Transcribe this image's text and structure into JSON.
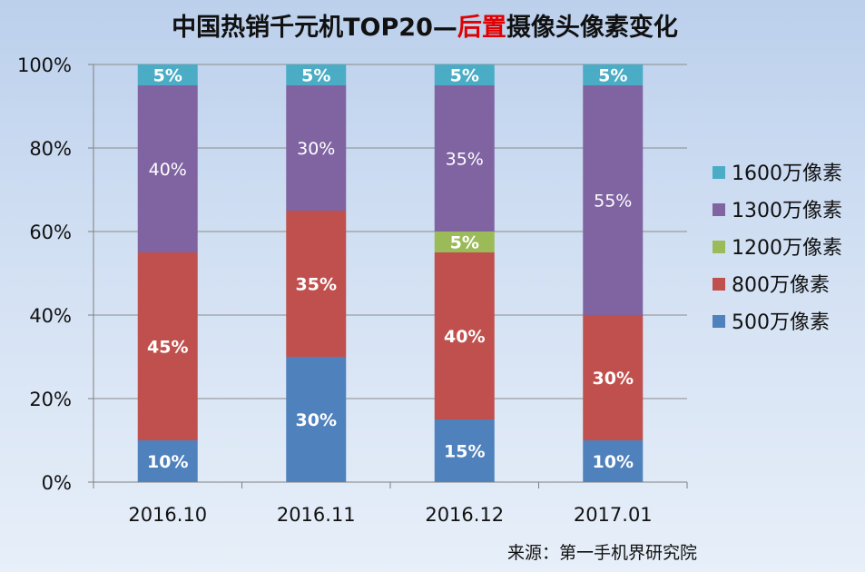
{
  "chart_data": {
    "type": "bar",
    "stacked": true,
    "title_parts": [
      {
        "text": "中国热销千元机TOP20—",
        "color": "#111111"
      },
      {
        "text": "后置",
        "color": "#e00000"
      },
      {
        "text": "摄像头像素变化",
        "color": "#111111"
      }
    ],
    "categories": [
      "2016.10",
      "2016.11",
      "2016.12",
      "2017.01"
    ],
    "series": [
      {
        "name": "500万像素",
        "color": "#4f81bd",
        "values": [
          10,
          30,
          15,
          10
        ],
        "labels": [
          "10%",
          "30%",
          "15%",
          "10%"
        ]
      },
      {
        "name": "800万像素",
        "color": "#c0504d",
        "values": [
          45,
          35,
          40,
          30
        ],
        "labels": [
          "45%",
          "35%",
          "40%",
          "30%"
        ]
      },
      {
        "name": "1200万像素",
        "color": "#9bbb59",
        "values": [
          0,
          0,
          5,
          0
        ],
        "labels": [
          "",
          "",
          "5%",
          ""
        ]
      },
      {
        "name": "1300万像素",
        "color": "#8064a2",
        "values": [
          40,
          30,
          35,
          55
        ],
        "labels": [
          "40%",
          "30%",
          "35%",
          "55%"
        ]
      },
      {
        "name": "1600万像素",
        "color": "#4bacc6",
        "values": [
          5,
          5,
          5,
          5
        ],
        "labels": [
          "5%",
          "5%",
          "5%",
          "5%"
        ]
      }
    ],
    "y_ticks": [
      "0%",
      "20%",
      "40%",
      "60%",
      "80%",
      "100%"
    ],
    "ylim": [
      0,
      100
    ],
    "grid": true,
    "legend_position": "right",
    "legend_order": [
      "1600万像素",
      "1300万像素",
      "1200万像素",
      "800万像素",
      "500万像素"
    ]
  },
  "source": "来源：第一手机界研究院"
}
